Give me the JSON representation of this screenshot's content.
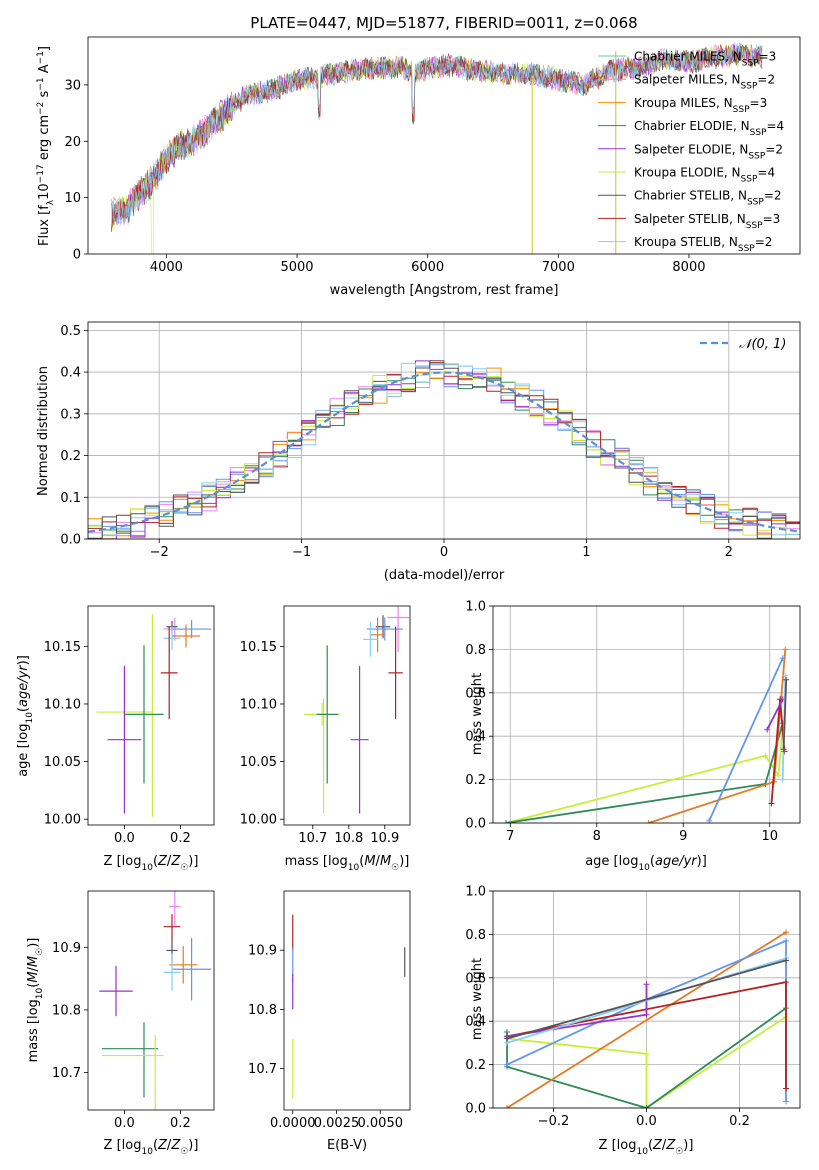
{
  "colors": {
    "Chabrier MILES": "#66cdaa",
    "Salpeter MILES": "#ee82ee",
    "Kroupa MILES": "#ff8c00",
    "Chabrier ELODIE": "#2e8b57",
    "Salpeter ELODIE": "#9932cc",
    "Kroupa ELODIE": "#c8ee3a",
    "Chabrier STELIB": "#555555",
    "Salpeter STELIB": "#b22222",
    "Kroupa STELIB": "#87cefa",
    "bluefit": "#6495ed",
    "orangefit": "#e47a24",
    "normal": "#5b8fd6"
  },
  "chart_data": [
    {
      "type": "line",
      "title": "PLATE=0447, MJD=51877, FIBERID=0011, z=0.068",
      "xlabel": "wavelength [Angstrom, rest frame]",
      "ylabel": "Flux [fλ10⁻¹⁷ erg cm⁻² s⁻¹ A⁻¹]",
      "xlim": [
        3400,
        8850
      ],
      "ylim": [
        0,
        38.5
      ],
      "xticks": [
        4000,
        5000,
        6000,
        7000,
        8000
      ],
      "yticks": [
        0,
        10,
        20,
        30
      ],
      "continuum": [
        [
          3580,
          7
        ],
        [
          3700,
          8
        ],
        [
          3800,
          11
        ],
        [
          3900,
          13
        ],
        [
          4000,
          17
        ],
        [
          4100,
          19
        ],
        [
          4200,
          20
        ],
        [
          4300,
          22
        ],
        [
          4400,
          24
        ],
        [
          4500,
          26
        ],
        [
          4600,
          28
        ],
        [
          4800,
          29
        ],
        [
          5000,
          31
        ],
        [
          5200,
          31.5
        ],
        [
          5400,
          32.5
        ],
        [
          5600,
          33
        ],
        [
          5800,
          33
        ],
        [
          5900,
          32
        ],
        [
          6000,
          33
        ],
        [
          6200,
          33.5
        ],
        [
          6400,
          32.5
        ],
        [
          6600,
          32
        ],
        [
          6800,
          32
        ],
        [
          7000,
          31
        ],
        [
          7200,
          30
        ],
        [
          7400,
          32.5
        ],
        [
          7600,
          33
        ],
        [
          7800,
          34.5
        ],
        [
          8000,
          34
        ],
        [
          8200,
          35
        ],
        [
          8400,
          35.5
        ],
        [
          8560,
          35
        ]
      ],
      "spike": [
        6800,
        7440
      ],
      "legend_position": "top-right",
      "legend": [
        {
          "name": "Chabrier MILES, N",
          "sub": "SSP",
          "suffix": "=3"
        },
        {
          "name": "Salpeter MILES, N",
          "sub": "SSP",
          "suffix": "=2"
        },
        {
          "name": "Kroupa MILES, N",
          "sub": "SSP",
          "suffix": "=3"
        },
        {
          "name": "Chabrier ELODIE, N",
          "sub": "SSP",
          "suffix": "=4"
        },
        {
          "name": "Salpeter ELODIE, N",
          "sub": "SSP",
          "suffix": "=2"
        },
        {
          "name": "Kroupa ELODIE, N",
          "sub": "SSP",
          "suffix": "=4"
        },
        {
          "name": "Chabrier STELIB, N",
          "sub": "SSP",
          "suffix": "=2"
        },
        {
          "name": "Salpeter STELIB, N",
          "sub": "SSP",
          "suffix": "=3"
        },
        {
          "name": "Kroupa STELIB, N",
          "sub": "SSP",
          "suffix": "=2"
        }
      ]
    },
    {
      "type": "line",
      "xlabel": "(data-model)/error",
      "ylabel": "Normed distribution",
      "xlim": [
        -2.5,
        2.5
      ],
      "ylim": [
        0,
        0.52
      ],
      "xticks": [
        -2,
        -1,
        0,
        1,
        2
      ],
      "yticks": [
        0.0,
        0.1,
        0.2,
        0.3,
        0.4,
        0.5
      ],
      "grid": true,
      "bins": {
        "start": -2.5,
        "width": 0.1,
        "count": 50
      },
      "series_label": "𝒩(0, 1)",
      "legend_position": "top-right"
    },
    {
      "type": "scatter",
      "xlabel": "Z [log10(Z/Z☉)]",
      "ylabel": "age  [log10(age/yr)]",
      "xlim": [
        -0.13,
        0.32
      ],
      "ylim": [
        9.995,
        10.185
      ],
      "xticks": [
        0.0,
        0.2
      ],
      "yticks": [
        10.0,
        10.05,
        10.1,
        10.15
      ],
      "points": [
        {
          "x": 0.18,
          "y": 10.165,
          "xerr": 0.04,
          "yerr": 0.01,
          "c": "Salpeter MILES"
        },
        {
          "x": 0.17,
          "y": 10.167,
          "xerr": 0.02,
          "yerr": 0.005,
          "c": "Chabrier STELIB"
        },
        {
          "x": 0.24,
          "y": 10.165,
          "xerr": 0.07,
          "yerr": 0.008,
          "c": "bluefit"
        },
        {
          "x": 0.22,
          "y": 10.159,
          "xerr": 0.05,
          "yerr": 0.01,
          "c": "orangefit"
        },
        {
          "x": 0.17,
          "y": 10.157,
          "xerr": 0.03,
          "yerr": 0.01,
          "c": "Kroupa STELIB"
        },
        {
          "x": 0.16,
          "y": 10.127,
          "xerr": 0.03,
          "yerr": 0.04,
          "c": "Salpeter STELIB"
        },
        {
          "x": 0.0,
          "y": 10.093,
          "xerr": 0.1,
          "yerr": 0.002,
          "c": "Kroupa ELODIE"
        },
        {
          "x": 0.1,
          "y": 10.09,
          "xerr": 0.0,
          "yerr": 0.088,
          "c": "Kroupa ELODIE"
        },
        {
          "x": 0.07,
          "y": 10.091,
          "xerr": 0.07,
          "yerr": 0.06,
          "c": "Chabrier ELODIE"
        },
        {
          "x": 0.0,
          "y": 10.069,
          "xerr": 0.06,
          "yerr": 0.064,
          "c": "Salpeter ELODIE"
        }
      ]
    },
    {
      "type": "scatter",
      "xlabel": "mass [log10(M/M☉)]",
      "ylabel": "",
      "xlim": [
        10.62,
        10.97
      ],
      "ylim": [
        9.995,
        10.185
      ],
      "xticks": [
        10.7,
        10.8,
        10.9
      ],
      "yticks": [
        10.0,
        10.05,
        10.1,
        10.15
      ],
      "points": [
        {
          "x": 10.937,
          "y": 10.175,
          "xerr": 0.03,
          "yerr": 0.03,
          "c": "Salpeter MILES"
        },
        {
          "x": 10.895,
          "y": 10.167,
          "xerr": 0.02,
          "yerr": 0.01,
          "c": "Chabrier STELIB"
        },
        {
          "x": 10.9,
          "y": 10.165,
          "xerr": 0.05,
          "yerr": 0.01,
          "c": "bluefit"
        },
        {
          "x": 10.88,
          "y": 10.16,
          "xerr": 0.02,
          "yerr": 0.015,
          "c": "orangefit"
        },
        {
          "x": 10.86,
          "y": 10.156,
          "xerr": 0.02,
          "yerr": 0.015,
          "c": "Kroupa STELIB"
        },
        {
          "x": 10.93,
          "y": 10.127,
          "xerr": 0.02,
          "yerr": 0.04,
          "c": "Salpeter STELIB"
        },
        {
          "x": 10.726,
          "y": 10.091,
          "xerr": 0.05,
          "yerr": 0.01,
          "c": "Kroupa ELODIE"
        },
        {
          "x": 10.73,
          "y": 10.055,
          "xerr": 0.0,
          "yerr": 0.05,
          "c": "Kroupa ELODIE"
        },
        {
          "x": 10.74,
          "y": 10.091,
          "xerr": 0.03,
          "yerr": 0.06,
          "c": "Chabrier ELODIE"
        },
        {
          "x": 10.83,
          "y": 10.069,
          "xerr": 0.025,
          "yerr": 0.064,
          "c": "Salpeter ELODIE"
        }
      ]
    },
    {
      "type": "line",
      "xlabel": "age  [log10(age/yr)]",
      "ylabel": "mass weight",
      "xlim": [
        6.8,
        10.35
      ],
      "ylim": [
        0,
        1.0
      ],
      "xticks": [
        7,
        8,
        9,
        10
      ],
      "yticks": [
        0.0,
        0.2,
        0.4,
        0.6,
        0.8,
        1.0
      ],
      "grid": true,
      "series": [
        {
          "c": "Kroupa ELODIE",
          "pts": [
            [
              6.95,
              0.0
            ],
            [
              9.95,
              0.31
            ],
            [
              10.1,
              0.22
            ],
            [
              10.15,
              0.44
            ]
          ]
        },
        {
          "c": "Chabrier ELODIE",
          "pts": [
            [
              6.95,
              0.0
            ],
            [
              9.95,
              0.18
            ],
            [
              10.15,
              0.46
            ]
          ]
        },
        {
          "c": "orangefit",
          "pts": [
            [
              8.6,
              0.0
            ],
            [
              10.05,
              0.19
            ],
            [
              10.18,
              0.8
            ]
          ]
        },
        {
          "c": "bluefit",
          "pts": [
            [
              9.3,
              0.01
            ],
            [
              10.15,
              0.76
            ]
          ]
        },
        {
          "c": "Salpeter STELIB",
          "pts": [
            [
              10.02,
              0.09
            ],
            [
              10.12,
              0.57
            ],
            [
              10.17,
              0.33
            ]
          ]
        },
        {
          "c": "Salpeter ELODIE",
          "pts": [
            [
              9.97,
              0.43
            ],
            [
              10.15,
              0.57
            ]
          ]
        },
        {
          "c": "Kroupa STELIB",
          "pts": [
            [
              10.15,
              0.2
            ],
            [
              10.18,
              0.68
            ]
          ]
        },
        {
          "c": "Chabrier STELIB",
          "pts": [
            [
              10.16,
              0.34
            ],
            [
              10.19,
              0.66
            ]
          ]
        }
      ]
    },
    {
      "type": "scatter",
      "xlabel": "Z [log10(Z/Z☉)]",
      "ylabel": "mass [log10(M/M☉)]",
      "xlim": [
        -0.13,
        0.32
      ],
      "ylim": [
        10.64,
        10.99
      ],
      "xticks": [
        0.0,
        0.2
      ],
      "yticks": [
        10.7,
        10.8,
        10.9
      ],
      "points": [
        {
          "x": 0.18,
          "y": 10.965,
          "xerr": 0.02,
          "yerr": 0.03,
          "c": "Salpeter MILES"
        },
        {
          "x": 0.17,
          "y": 10.933,
          "xerr": 0.03,
          "yerr": 0.02,
          "c": "Salpeter STELIB"
        },
        {
          "x": 0.17,
          "y": 10.895,
          "xerr": 0.02,
          "yerr": 0.02,
          "c": "Chabrier STELIB"
        },
        {
          "x": 0.24,
          "y": 10.865,
          "xerr": 0.07,
          "yerr": 0.05,
          "c": "bluefit"
        },
        {
          "x": 0.21,
          "y": 10.872,
          "xerr": 0.05,
          "yerr": 0.03,
          "c": "orangefit"
        },
        {
          "x": 0.17,
          "y": 10.86,
          "xerr": 0.03,
          "yerr": 0.03,
          "c": "Kroupa STELIB"
        },
        {
          "x": -0.03,
          "y": 10.83,
          "xerr": 0.06,
          "yerr": 0.04,
          "c": "Salpeter ELODIE"
        },
        {
          "x": 0.02,
          "y": 10.738,
          "xerr": 0.1,
          "yerr": 0.0,
          "c": "Chabrier ELODIE"
        },
        {
          "x": 0.07,
          "y": 10.72,
          "xerr": 0.0,
          "yerr": 0.06,
          "c": "Chabrier ELODIE"
        },
        {
          "x": 0.03,
          "y": 10.727,
          "xerr": 0.11,
          "yerr": 0.0,
          "c": "Kroupa ELODIE"
        },
        {
          "x": 0.11,
          "y": 10.7,
          "xerr": 0.0,
          "yerr": 0.06,
          "c": "Kroupa ELODIE"
        }
      ]
    },
    {
      "type": "scatter",
      "xlabel": "E(B-V)",
      "ylabel": "",
      "xlim": [
        -0.0005,
        0.0067
      ],
      "ylim": [
        10.63,
        11.0
      ],
      "xticks": [
        0.0,
        0.0025,
        0.005
      ],
      "xticklabels": [
        "0.0000",
        "0.0025",
        "0.0050"
      ],
      "yticks": [
        10.7,
        10.8,
        10.9
      ],
      "points": [
        {
          "x": 0.0,
          "y": 10.93,
          "xerr": 0.0,
          "yerr": 0.03,
          "c": "Salpeter STELIB"
        },
        {
          "x": 0.0,
          "y": 10.875,
          "xerr": 0.0,
          "yerr": 0.03,
          "c": "bluefit"
        },
        {
          "x": 0.0,
          "y": 10.83,
          "xerr": 0.0,
          "yerr": 0.03,
          "c": "Salpeter ELODIE"
        },
        {
          "x": 0.0,
          "y": 10.7,
          "xerr": 0.0,
          "yerr": 0.05,
          "c": "Kroupa ELODIE"
        },
        {
          "x": 0.0064,
          "y": 10.88,
          "xerr": 0.0,
          "yerr": 0.025,
          "c": "Chabrier STELIB"
        }
      ]
    },
    {
      "type": "line",
      "xlabel": "Z [log10(Z/Z☉)]",
      "ylabel": "mass weight",
      "xlim": [
        -0.33,
        0.33
      ],
      "ylim": [
        0,
        1.0
      ],
      "xticks": [
        -0.2,
        0.0,
        0.2
      ],
      "xticklabels": [
        "−0.2",
        "0.0",
        "0.2"
      ],
      "yticks": [
        0.0,
        0.2,
        0.4,
        0.6,
        0.8,
        1.0
      ],
      "grid": true,
      "series": [
        {
          "c": "Kroupa ELODIE",
          "pts": [
            [
              -0.3,
              0.32
            ],
            [
              0.0,
              0.25
            ],
            [
              0.0,
              0.0
            ],
            [
              0.3,
              0.42
            ]
          ]
        },
        {
          "c": "Chabrier ELODIE",
          "pts": [
            [
              -0.3,
              0.35
            ],
            [
              -0.3,
              0.19
            ],
            [
              0.0,
              0.0
            ],
            [
              0.3,
              0.46
            ]
          ]
        },
        {
          "c": "orangefit",
          "pts": [
            [
              -0.3,
              0.0
            ],
            [
              0.3,
              0.81
            ]
          ]
        },
        {
          "c": "bluefit",
          "pts": [
            [
              -0.3,
              0.2
            ],
            [
              0.0,
              0.5
            ],
            [
              0.3,
              0.77
            ],
            [
              0.3,
              0.03
            ]
          ]
        },
        {
          "c": "Salpeter STELIB",
          "pts": [
            [
              -0.3,
              0.33
            ],
            [
              0.3,
              0.58
            ],
            [
              0.3,
              0.09
            ]
          ]
        },
        {
          "c": "Salpeter ELODIE",
          "pts": [
            [
              -0.3,
              0.33
            ],
            [
              0.0,
              0.43
            ],
            [
              0.0,
              0.57
            ]
          ]
        },
        {
          "c": "Kroupa STELIB",
          "pts": [
            [
              -0.3,
              0.3
            ],
            [
              0.3,
              0.69
            ]
          ]
        },
        {
          "c": "Chabrier STELIB",
          "pts": [
            [
              -0.3,
              0.32
            ],
            [
              0.3,
              0.68
            ]
          ]
        }
      ]
    }
  ]
}
